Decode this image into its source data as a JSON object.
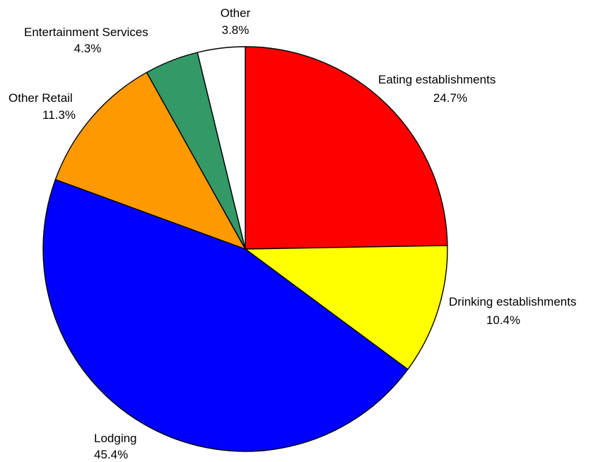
{
  "chart_data": {
    "type": "pie",
    "start_angle_deg": 0,
    "direction": "clockwise",
    "slices": [
      {
        "label": "Eating establishments",
        "value": 24.7,
        "value_label": "24.7%",
        "color": "#ff0000"
      },
      {
        "label": "Drinking establishments",
        "value": 10.4,
        "value_label": "10.4%",
        "color": "#ffff00"
      },
      {
        "label": "Lodging",
        "value": 45.4,
        "value_label": "45.4%",
        "color": "#0000ff"
      },
      {
        "label": "Other Retail",
        "value": 11.3,
        "value_label": "11.3%",
        "color": "#ff9900"
      },
      {
        "label": "Entertainment Services",
        "value": 4.3,
        "value_label": "4.3%",
        "color": "#339966"
      },
      {
        "label": "Other",
        "value": 3.8,
        "value_label": "3.8%",
        "color": "#ffffff"
      }
    ]
  }
}
